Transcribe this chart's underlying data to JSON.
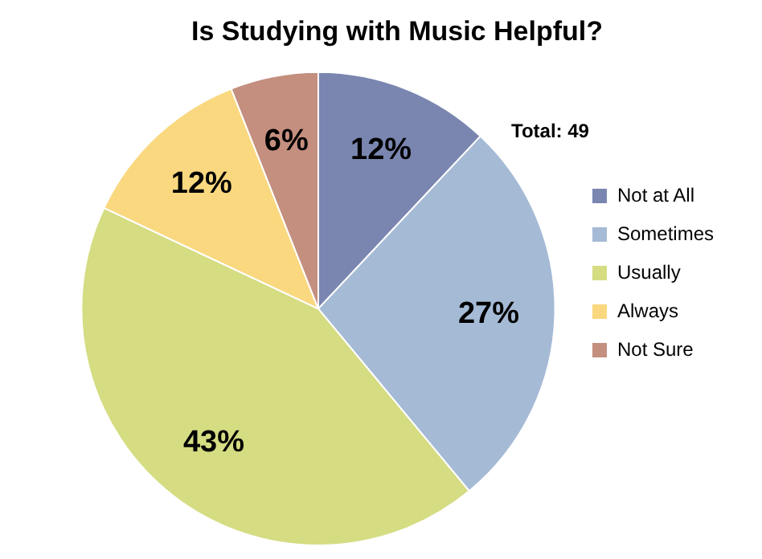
{
  "chart_data": {
    "type": "pie",
    "title": "Is Studying with Music Helpful?",
    "categories": [
      "Not at All",
      "Sometimes",
      "Usually",
      "Always",
      "Not Sure"
    ],
    "values": [
      12,
      27,
      43,
      12,
      6
    ],
    "colors": [
      "#7a86b0",
      "#a5bad5",
      "#d5dc82",
      "#fad87f",
      "#c48f7f"
    ],
    "value_labels": [
      "12%",
      "27%",
      "43%",
      "12%",
      "6%"
    ],
    "annotations": [
      "Total: 49"
    ],
    "legend": "right"
  }
}
